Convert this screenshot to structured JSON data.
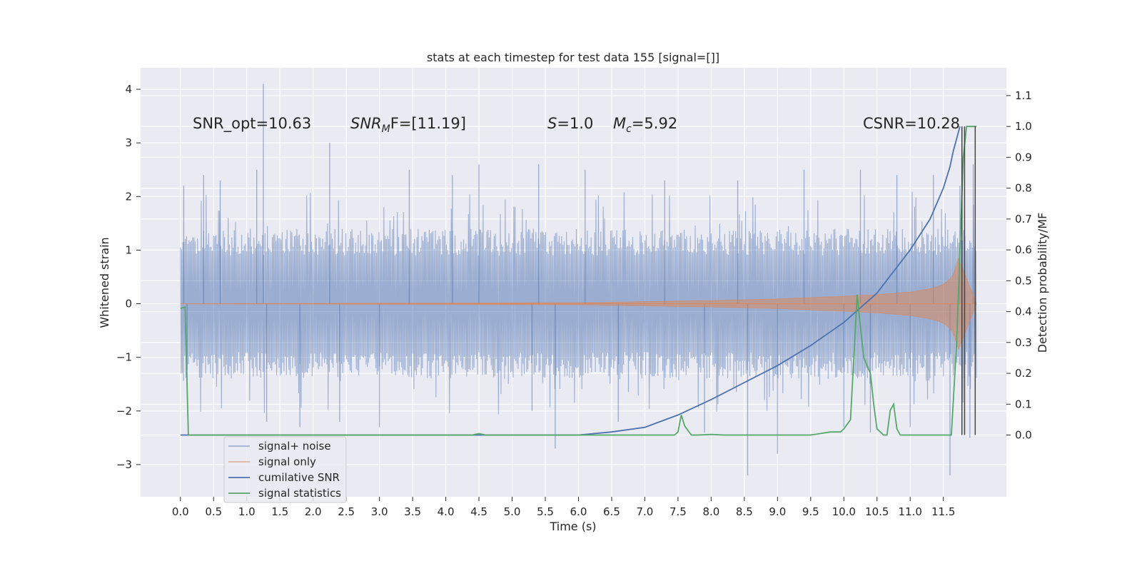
{
  "chart_data": {
    "type": "line",
    "title": "stats at each timestep for test data 155 [signal=[]]",
    "xlabel": "Time (s)",
    "ylabel": "Whitened strain",
    "ylabel_right": "Detection probability/MF",
    "xlim": [
      -0.6,
      12.45
    ],
    "ylim": [
      -3.6,
      4.4
    ],
    "ylim_right": [
      -0.2,
      1.19
    ],
    "x_ticks": [
      "0.0",
      "0.5",
      "1.0",
      "1.5",
      "2.0",
      "2.5",
      "3.0",
      "3.5",
      "4.0",
      "4.5",
      "5.0",
      "5.5",
      "6.0",
      "6.5",
      "7.0",
      "7.5",
      "8.0",
      "8.5",
      "9.0",
      "9.5",
      "10.0",
      "10.5",
      "11.0",
      "11.5"
    ],
    "y_ticks": [
      "−3",
      "−2",
      "−1",
      "0",
      "1",
      "2",
      "3",
      "4"
    ],
    "y_ticks_right": [
      "0.0",
      "0.1",
      "0.2",
      "0.3",
      "0.4",
      "0.5",
      "0.6",
      "0.7",
      "0.8",
      "0.9",
      "1.0",
      "1.1"
    ],
    "grid": true,
    "legend_placement": "lower-left",
    "annotations": {
      "snr_opt": "SNR_opt=10.63",
      "snr_mf_main": "SNR",
      "snr_mf_sub": "M",
      "snr_mf_rest": "F=[11.19]",
      "s_main": "S",
      "s_rest": "=1.0",
      "mc_main": "M",
      "mc_sub": "c",
      "mc_rest": "=5.92",
      "csnr": "CSNR=10.28"
    },
    "series": [
      {
        "name": "signal+ noise",
        "color": "#4c72b0",
        "axis": "left",
        "x_range": [
          0.0,
          12.0
        ],
        "typical_amplitude": [
          -1.3,
          1.3
        ],
        "spikes": [
          [
            0.05,
            2.2
          ],
          [
            0.1,
            -1.5
          ],
          [
            0.35,
            2.4
          ],
          [
            0.6,
            2.3
          ],
          [
            1.15,
            2.5
          ],
          [
            1.25,
            4.1
          ],
          [
            1.3,
            -2.2
          ],
          [
            1.8,
            -2.3
          ],
          [
            2.25,
            3.0
          ],
          [
            2.4,
            -2.2
          ],
          [
            3.0,
            -2.3
          ],
          [
            3.45,
            2.5
          ],
          [
            4.1,
            2.4
          ],
          [
            4.5,
            2.6
          ],
          [
            5.3,
            -2.0
          ],
          [
            5.4,
            2.6
          ],
          [
            5.65,
            -2.7
          ],
          [
            6.1,
            2.5
          ],
          [
            6.6,
            -2.2
          ],
          [
            7.3,
            2.3
          ],
          [
            7.9,
            -2.4
          ],
          [
            8.4,
            2.3
          ],
          [
            8.55,
            -3.2
          ],
          [
            9.0,
            -2.8
          ],
          [
            9.4,
            2.5
          ],
          [
            10.0,
            -2.3
          ],
          [
            10.25,
            2.5
          ],
          [
            10.4,
            -2.4
          ],
          [
            10.8,
            2.4
          ],
          [
            11.0,
            -2.3
          ],
          [
            11.35,
            2.4
          ],
          [
            11.6,
            -3.2
          ],
          [
            11.75,
            2.2
          ],
          [
            11.95,
            2.6
          ],
          [
            11.9,
            -2.5
          ]
        ]
      },
      {
        "name": "signal only",
        "color": "#dd8452",
        "axis": "left",
        "envelope_t": [
          0.0,
          6.0,
          7.0,
          8.0,
          9.0,
          10.0,
          10.5,
          11.0,
          11.3,
          11.5,
          11.6,
          11.65,
          11.7,
          11.73,
          12.0
        ],
        "envelope_amp": [
          0.0,
          0.02,
          0.04,
          0.06,
          0.09,
          0.14,
          0.17,
          0.22,
          0.28,
          0.36,
          0.46,
          0.55,
          0.75,
          0.85,
          0.0
        ]
      },
      {
        "name": "cumilative SNR",
        "color": "#4c72b0",
        "axis": "right",
        "x": [
          0.0,
          6.0,
          6.5,
          7.0,
          7.5,
          8.0,
          8.5,
          9.0,
          9.5,
          10.0,
          10.5,
          11.0,
          11.3,
          11.5,
          11.6,
          11.65,
          11.7,
          11.75
        ],
        "y": [
          0.0,
          0.0,
          0.01,
          0.025,
          0.065,
          0.115,
          0.17,
          0.225,
          0.29,
          0.365,
          0.46,
          0.6,
          0.7,
          0.8,
          0.87,
          0.92,
          0.96,
          1.0
        ]
      },
      {
        "name": "signal statistics",
        "color": "#55a868",
        "axis": "right",
        "x": [
          0.0,
          0.07,
          0.12,
          0.15,
          0.2,
          4.4,
          4.5,
          4.6,
          7.45,
          7.5,
          7.55,
          7.6,
          7.7,
          7.8,
          8.0,
          8.2,
          9.5,
          9.8,
          9.95,
          10.0,
          10.1,
          10.15,
          10.2,
          10.25,
          10.3,
          10.4,
          10.45,
          10.5,
          10.6,
          10.65,
          10.7,
          10.75,
          10.8,
          10.85,
          11.0,
          11.5,
          11.62,
          11.7,
          11.8,
          11.85,
          11.9,
          12.0
        ],
        "y": [
          0.41,
          0.415,
          0.0,
          0.0,
          0.0,
          0.0,
          0.005,
          0.0,
          0.0,
          0.01,
          0.065,
          0.03,
          0.0,
          0.0,
          0.002,
          0.0,
          0.0,
          0.01,
          0.01,
          0.02,
          0.05,
          0.25,
          0.455,
          0.35,
          0.25,
          0.2,
          0.1,
          0.02,
          0.0,
          0.0,
          0.08,
          0.1,
          0.02,
          0.0,
          0.0,
          0.0,
          0.0,
          0.3,
          0.9,
          1.0,
          1.0,
          1.0
        ]
      }
    ],
    "vertical_lines_x": [
      11.78,
      11.82,
      11.98
    ]
  }
}
